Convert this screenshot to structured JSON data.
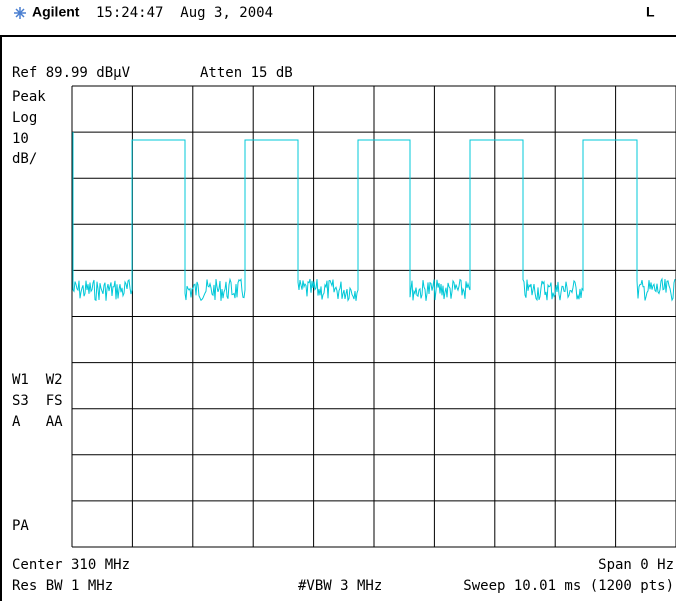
{
  "header": {
    "logo": "Agilent",
    "datetime": "15:24:47  Aug 3, 2004",
    "indicator": "L"
  },
  "settings": {
    "ref": "Ref 89.99 dBµV",
    "atten": "Atten 15 dB"
  },
  "left_labels": {
    "detector": "Peak",
    "scale_type": "Log",
    "scale_value": "10",
    "scale_unit": "dB/",
    "w1w2": "W1  W2",
    "s3fs": "S3  FS",
    "aaa": "A   AA",
    "pa": "PA"
  },
  "footer": {
    "center": "Center 310 MHz",
    "span": "Span 0 Hz",
    "res_bw": "Res BW 1 MHz",
    "vbw": "#VBW 3 MHz",
    "sweep": "Sweep 10.01 ms (1200 pts)"
  }
}
